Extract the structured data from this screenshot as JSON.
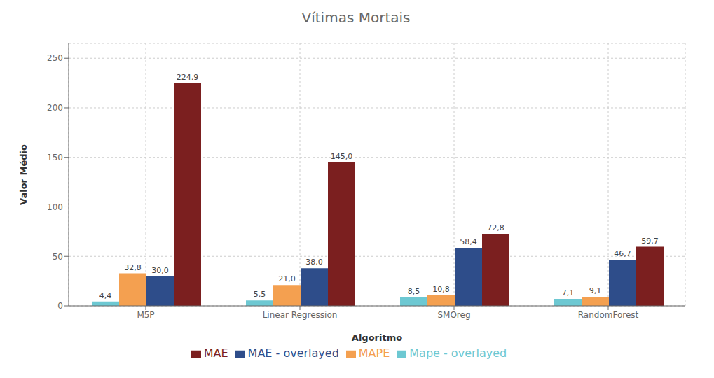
{
  "chart_data": {
    "type": "bar",
    "title": "Vítimas Mortais",
    "xlabel": "Algoritmo",
    "ylabel": "Valor Médio",
    "categories": [
      "M5P",
      "Linear Regression",
      "SMOreg",
      "RandomForest"
    ],
    "series": [
      {
        "name": "Mape - overlayed",
        "color": "#6DC8D2",
        "values": [
          4.4,
          5.5,
          8.5,
          7.1
        ],
        "value_labels": [
          "4,4",
          "5,5",
          "8,5",
          "7,1"
        ]
      },
      {
        "name": "MAPE",
        "color": "#F4A050",
        "values": [
          32.8,
          21.0,
          10.8,
          9.1
        ],
        "value_labels": [
          "32,8",
          "21,0",
          "10,8",
          "9,1"
        ]
      },
      {
        "name": "MAE - overlayed",
        "color": "#2E4D8A",
        "values": [
          30.0,
          38.0,
          58.4,
          46.7
        ],
        "value_labels": [
          "30,0",
          "38,0",
          "58,4",
          "46,7"
        ]
      },
      {
        "name": "MAE",
        "color": "#7B1F1F",
        "values": [
          224.9,
          145.0,
          72.8,
          59.7
        ],
        "value_labels": [
          "224,9",
          "145,0",
          "72,8",
          "59,7"
        ]
      }
    ],
    "ylim": [
      0,
      265
    ],
    "yticks": [
      0,
      50,
      100,
      150,
      200,
      250
    ],
    "grid": true,
    "legend": "bottom",
    "data_labels": true
  }
}
